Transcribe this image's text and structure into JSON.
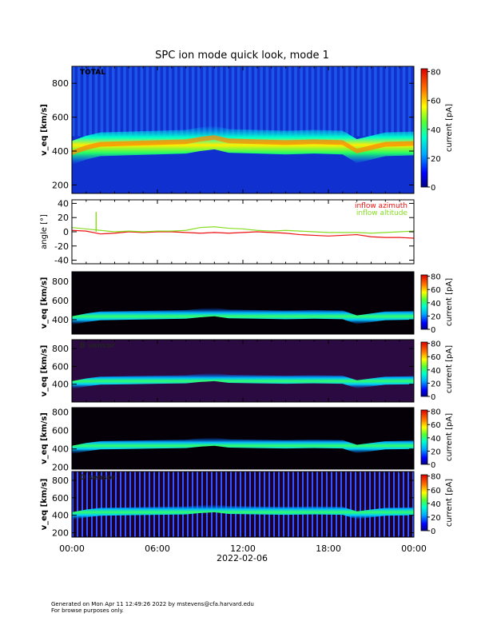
{
  "title": "SPC ion mode quick look, mode 1",
  "date_label": "2022-02-06",
  "footer": {
    "line1": "Generated on Mon Apr 11 12:49:26 2022 by mstevens@cfa.harvard.edu",
    "line2": "For browse purposes only."
  },
  "colorbar": {
    "label": "current [pA]",
    "ticks_full": [
      0,
      20,
      40,
      60,
      80
    ],
    "ticks_small": [
      0,
      20,
      40,
      60,
      80
    ]
  },
  "chart_data": [
    {
      "type": "heatmap",
      "panel_label": "TOTAL",
      "ylabel": "v_eq [km/s]",
      "yticks": [
        200,
        400,
        600,
        800
      ],
      "ylim": [
        150,
        900
      ],
      "xlim_hours": [
        0,
        24
      ],
      "xtick_labels": [
        "00:00",
        "06:00",
        "12:00",
        "18:00",
        "00:00"
      ],
      "background": "blue",
      "band_center_kms": [
        [
          0,
          390
        ],
        [
          1,
          420
        ],
        [
          2,
          440
        ],
        [
          4,
          445
        ],
        [
          6,
          450
        ],
        [
          8,
          455
        ],
        [
          9,
          470
        ],
        [
          10,
          480
        ],
        [
          11,
          460
        ],
        [
          13,
          455
        ],
        [
          15,
          450
        ],
        [
          17,
          455
        ],
        [
          19,
          450
        ],
        [
          20,
          400
        ],
        [
          21,
          420
        ],
        [
          22,
          440
        ],
        [
          24,
          445
        ]
      ]
    },
    {
      "type": "line",
      "ylabel": "angle [°]",
      "yticks": [
        -40,
        -20,
        0,
        20,
        40
      ],
      "ylim": [
        -45,
        45
      ],
      "xlim_hours": [
        0,
        24
      ],
      "series": [
        {
          "name": "inflow azimuth",
          "color": "#ee1111",
          "x": [
            0,
            1,
            2,
            3,
            4,
            5,
            6,
            7,
            8,
            9,
            10,
            11,
            12,
            13,
            14,
            15,
            16,
            17,
            18,
            19,
            20,
            21,
            22,
            23,
            24
          ],
          "y": [
            2,
            1,
            -3,
            -2,
            0,
            -1,
            0,
            0,
            -1,
            -2,
            -1,
            -2,
            -1,
            0,
            -1,
            -2,
            -4,
            -5,
            -6,
            -5,
            -4,
            -7,
            -8,
            -8,
            -9
          ]
        },
        {
          "name": "inflow altitude",
          "color": "#88dd22",
          "x": [
            0,
            1,
            2,
            3,
            4,
            5,
            6,
            7,
            8,
            9,
            10,
            11,
            12,
            13,
            14,
            15,
            16,
            17,
            18,
            19,
            20,
            21,
            22,
            23,
            24
          ],
          "y": [
            6,
            4,
            2,
            0,
            1,
            0,
            1,
            1,
            2,
            6,
            7,
            5,
            4,
            2,
            1,
            2,
            1,
            0,
            -1,
            -1,
            -1,
            -2,
            -1,
            0,
            1
          ]
        }
      ]
    },
    {
      "type": "heatmap",
      "panel_label": "",
      "ylabel": "v_eq [km/s]",
      "yticks": [
        400,
        600,
        800
      ],
      "ylim": [
        250,
        900
      ],
      "background": "black"
    },
    {
      "type": "heatmap",
      "panel_label": "B sensor",
      "ylabel": "v_eq [km/s]",
      "yticks": [
        400,
        600,
        800
      ],
      "ylim": [
        200,
        900
      ],
      "background": "purple"
    },
    {
      "type": "heatmap",
      "panel_label": "",
      "ylabel": "v_eq [km/s]",
      "yticks": [
        200,
        400,
        600,
        800
      ],
      "ylim": [
        180,
        850
      ],
      "background": "black"
    },
    {
      "type": "heatmap",
      "panel_label": "D sensor",
      "ylabel": "v_eq [km/s]",
      "yticks": [
        200,
        400,
        600,
        800
      ],
      "ylim": [
        150,
        900
      ],
      "background": "striped"
    }
  ]
}
